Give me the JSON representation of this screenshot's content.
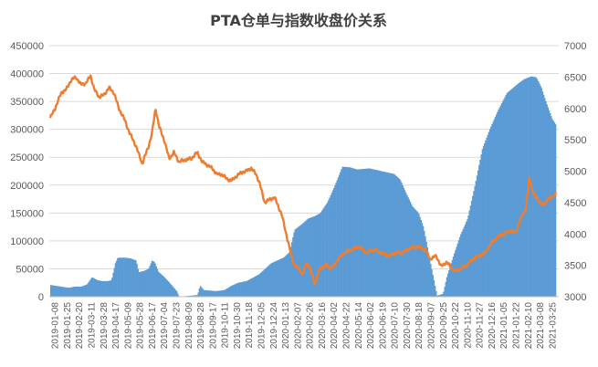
{
  "chart_data": {
    "type": "bar+line",
    "title": "PTA仓单与指数收盘价关系",
    "x_tick_labels": [
      "2019-01-08",
      "2019-01-25",
      "2019-02-20",
      "2019-03-11",
      "2019-03-28",
      "2019-04-17",
      "2019-05-09",
      "2019-05-28",
      "2019-06-17",
      "2019-07-04",
      "2019-07-23",
      "2019-08-09",
      "2019-08-28",
      "2019-09-17",
      "2019-10-11",
      "2019-10-30",
      "2019-11-18",
      "2019-12-05",
      "2019-12-24",
      "2020-01-13",
      "2020-02-07",
      "2020-02-26",
      "2020-03-16",
      "2020-04-02",
      "2020-04-22",
      "2020-05-14",
      "2020-06-02",
      "2020-06-19",
      "2020-07-10",
      "2020-07-30",
      "2020-08-18",
      "2020-09-07",
      "2020-09-25",
      "2020-10-22",
      "2020-11-10",
      "2020-11-27",
      "2020-12-16",
      "2021-01-05",
      "2021-01-22",
      "2021-02-10",
      "2021-03-08",
      "2021-03-25"
    ],
    "y_left": {
      "min": 0,
      "max": 450000,
      "step": 50000
    },
    "y_right": {
      "min": 3000,
      "max": 7000,
      "step": 500
    },
    "series": [
      {
        "kind": "bar",
        "axis": "left",
        "color": "#5b9bd5",
        "values": [
          [
            0,
            21000
          ],
          [
            1.5,
            16000
          ],
          [
            2,
            18000
          ],
          [
            2.5,
            18000
          ],
          [
            3,
            22000
          ],
          [
            3.4,
            35000
          ],
          [
            3.8,
            30000
          ],
          [
            4.2,
            28000
          ],
          [
            4.7,
            28000
          ],
          [
            5,
            30000
          ],
          [
            5.3,
            60000
          ],
          [
            5.5,
            70000
          ],
          [
            6,
            70000
          ],
          [
            6.5,
            69000
          ],
          [
            7,
            65000
          ],
          [
            7.2,
            44000
          ],
          [
            7.6,
            46000
          ],
          [
            8,
            50000
          ],
          [
            8.3,
            65000
          ],
          [
            8.5,
            62000
          ],
          [
            8.8,
            45000
          ],
          [
            9.3,
            35000
          ],
          [
            9.8,
            23000
          ],
          [
            10.3,
            10000
          ],
          [
            10.5,
            0
          ],
          [
            11,
            1000
          ],
          [
            12,
            3000
          ],
          [
            12.2,
            20000
          ],
          [
            12.5,
            12000
          ],
          [
            13.5,
            10000
          ],
          [
            14.2,
            12000
          ],
          [
            14.8,
            20000
          ],
          [
            15.3,
            25000
          ],
          [
            16,
            28000
          ],
          [
            17,
            40000
          ],
          [
            18,
            60000
          ],
          [
            19,
            70000
          ],
          [
            19.5,
            80000
          ],
          [
            19.9,
            120000
          ],
          [
            20.5,
            130000
          ],
          [
            21,
            140000
          ],
          [
            21.6,
            145000
          ],
          [
            22,
            150000
          ],
          [
            22.6,
            170000
          ],
          [
            23.2,
            200000
          ],
          [
            23.8,
            233000
          ],
          [
            24.4,
            232000
          ],
          [
            25,
            228000
          ],
          [
            26,
            230000
          ],
          [
            27,
            225000
          ],
          [
            28,
            220000
          ],
          [
            28.5,
            210000
          ],
          [
            29,
            185000
          ],
          [
            29.5,
            162000
          ],
          [
            30,
            150000
          ],
          [
            30.4,
            125000
          ],
          [
            30.8,
            80000
          ],
          [
            31.2,
            35000
          ],
          [
            31.5,
            2000
          ],
          [
            32,
            5000
          ],
          [
            32.3,
            35000
          ],
          [
            32.8,
            70000
          ],
          [
            33.4,
            110000
          ],
          [
            34,
            140000
          ],
          [
            34.6,
            200000
          ],
          [
            35.2,
            265000
          ],
          [
            35.8,
            300000
          ],
          [
            36.5,
            335000
          ],
          [
            37.2,
            365000
          ],
          [
            38,
            380000
          ],
          [
            38.6,
            390000
          ],
          [
            39.2,
            395000
          ],
          [
            39.6,
            393000
          ],
          [
            40,
            375000
          ],
          [
            40.4,
            348000
          ],
          [
            40.9,
            318000
          ],
          [
            41.2,
            308000
          ]
        ]
      },
      {
        "kind": "line",
        "axis": "right",
        "color": "#ed7d31",
        "values": [
          [
            0,
            5850
          ],
          [
            0.4,
            6000
          ],
          [
            0.9,
            6250
          ],
          [
            1.3,
            6300
          ],
          [
            1.7,
            6450
          ],
          [
            2.1,
            6500
          ],
          [
            2.5,
            6380
          ],
          [
            2.9,
            6400
          ],
          [
            3.3,
            6520
          ],
          [
            3.6,
            6300
          ],
          [
            4,
            6180
          ],
          [
            4.4,
            6220
          ],
          [
            4.8,
            6330
          ],
          [
            5.2,
            6250
          ],
          [
            5.6,
            6000
          ],
          [
            6,
            5850
          ],
          [
            6.5,
            5600
          ],
          [
            7,
            5400
          ],
          [
            7.5,
            5120
          ],
          [
            8,
            5380
          ],
          [
            8.3,
            5600
          ],
          [
            8.6,
            6000
          ],
          [
            8.9,
            5700
          ],
          [
            9.3,
            5500
          ],
          [
            9.7,
            5200
          ],
          [
            10.1,
            5300
          ],
          [
            10.5,
            5150
          ],
          [
            11,
            5180
          ],
          [
            11.5,
            5200
          ],
          [
            12,
            5300
          ],
          [
            12.4,
            5150
          ],
          [
            12.8,
            5100
          ],
          [
            13.2,
            5050
          ],
          [
            13.6,
            4950
          ],
          [
            14,
            4950
          ],
          [
            14.4,
            4880
          ],
          [
            14.8,
            4850
          ],
          [
            15.2,
            4920
          ],
          [
            15.6,
            4980
          ],
          [
            16,
            5000
          ],
          [
            16.4,
            5050
          ],
          [
            16.8,
            4950
          ],
          [
            17.1,
            4800
          ],
          [
            17.5,
            4500
          ],
          [
            17.9,
            4550
          ],
          [
            18.3,
            4580
          ],
          [
            18.6,
            4450
          ],
          [
            18.9,
            4300
          ],
          [
            19.2,
            4050
          ],
          [
            19.5,
            3800
          ],
          [
            19.9,
            3500
          ],
          [
            20.3,
            3450
          ],
          [
            20.6,
            3350
          ],
          [
            20.9,
            3550
          ],
          [
            21.2,
            3450
          ],
          [
            21.6,
            3200
          ],
          [
            22,
            3450
          ],
          [
            22.5,
            3500
          ],
          [
            23,
            3450
          ],
          [
            23.5,
            3600
          ],
          [
            24,
            3700
          ],
          [
            24.6,
            3750
          ],
          [
            25.2,
            3800
          ],
          [
            25.8,
            3700
          ],
          [
            26.4,
            3750
          ],
          [
            27,
            3700
          ],
          [
            27.6,
            3650
          ],
          [
            28.2,
            3700
          ],
          [
            28.8,
            3700
          ],
          [
            29.4,
            3780
          ],
          [
            30,
            3800
          ],
          [
            30.6,
            3750
          ],
          [
            31,
            3600
          ],
          [
            31.5,
            3650
          ],
          [
            31.9,
            3480
          ],
          [
            32.3,
            3550
          ],
          [
            32.6,
            3500
          ],
          [
            33,
            3400
          ],
          [
            33.5,
            3450
          ],
          [
            34,
            3500
          ],
          [
            34.5,
            3600
          ],
          [
            35,
            3650
          ],
          [
            35.5,
            3700
          ],
          [
            36,
            3850
          ],
          [
            36.5,
            3950
          ],
          [
            37,
            4000
          ],
          [
            37.5,
            4050
          ],
          [
            38,
            4020
          ],
          [
            38.4,
            4250
          ],
          [
            38.8,
            4400
          ],
          [
            39.1,
            4900
          ],
          [
            39.4,
            4650
          ],
          [
            39.8,
            4550
          ],
          [
            40.2,
            4450
          ],
          [
            40.6,
            4550
          ],
          [
            41,
            4600
          ],
          [
            41.3,
            4650
          ]
        ]
      }
    ],
    "legend": "none"
  }
}
